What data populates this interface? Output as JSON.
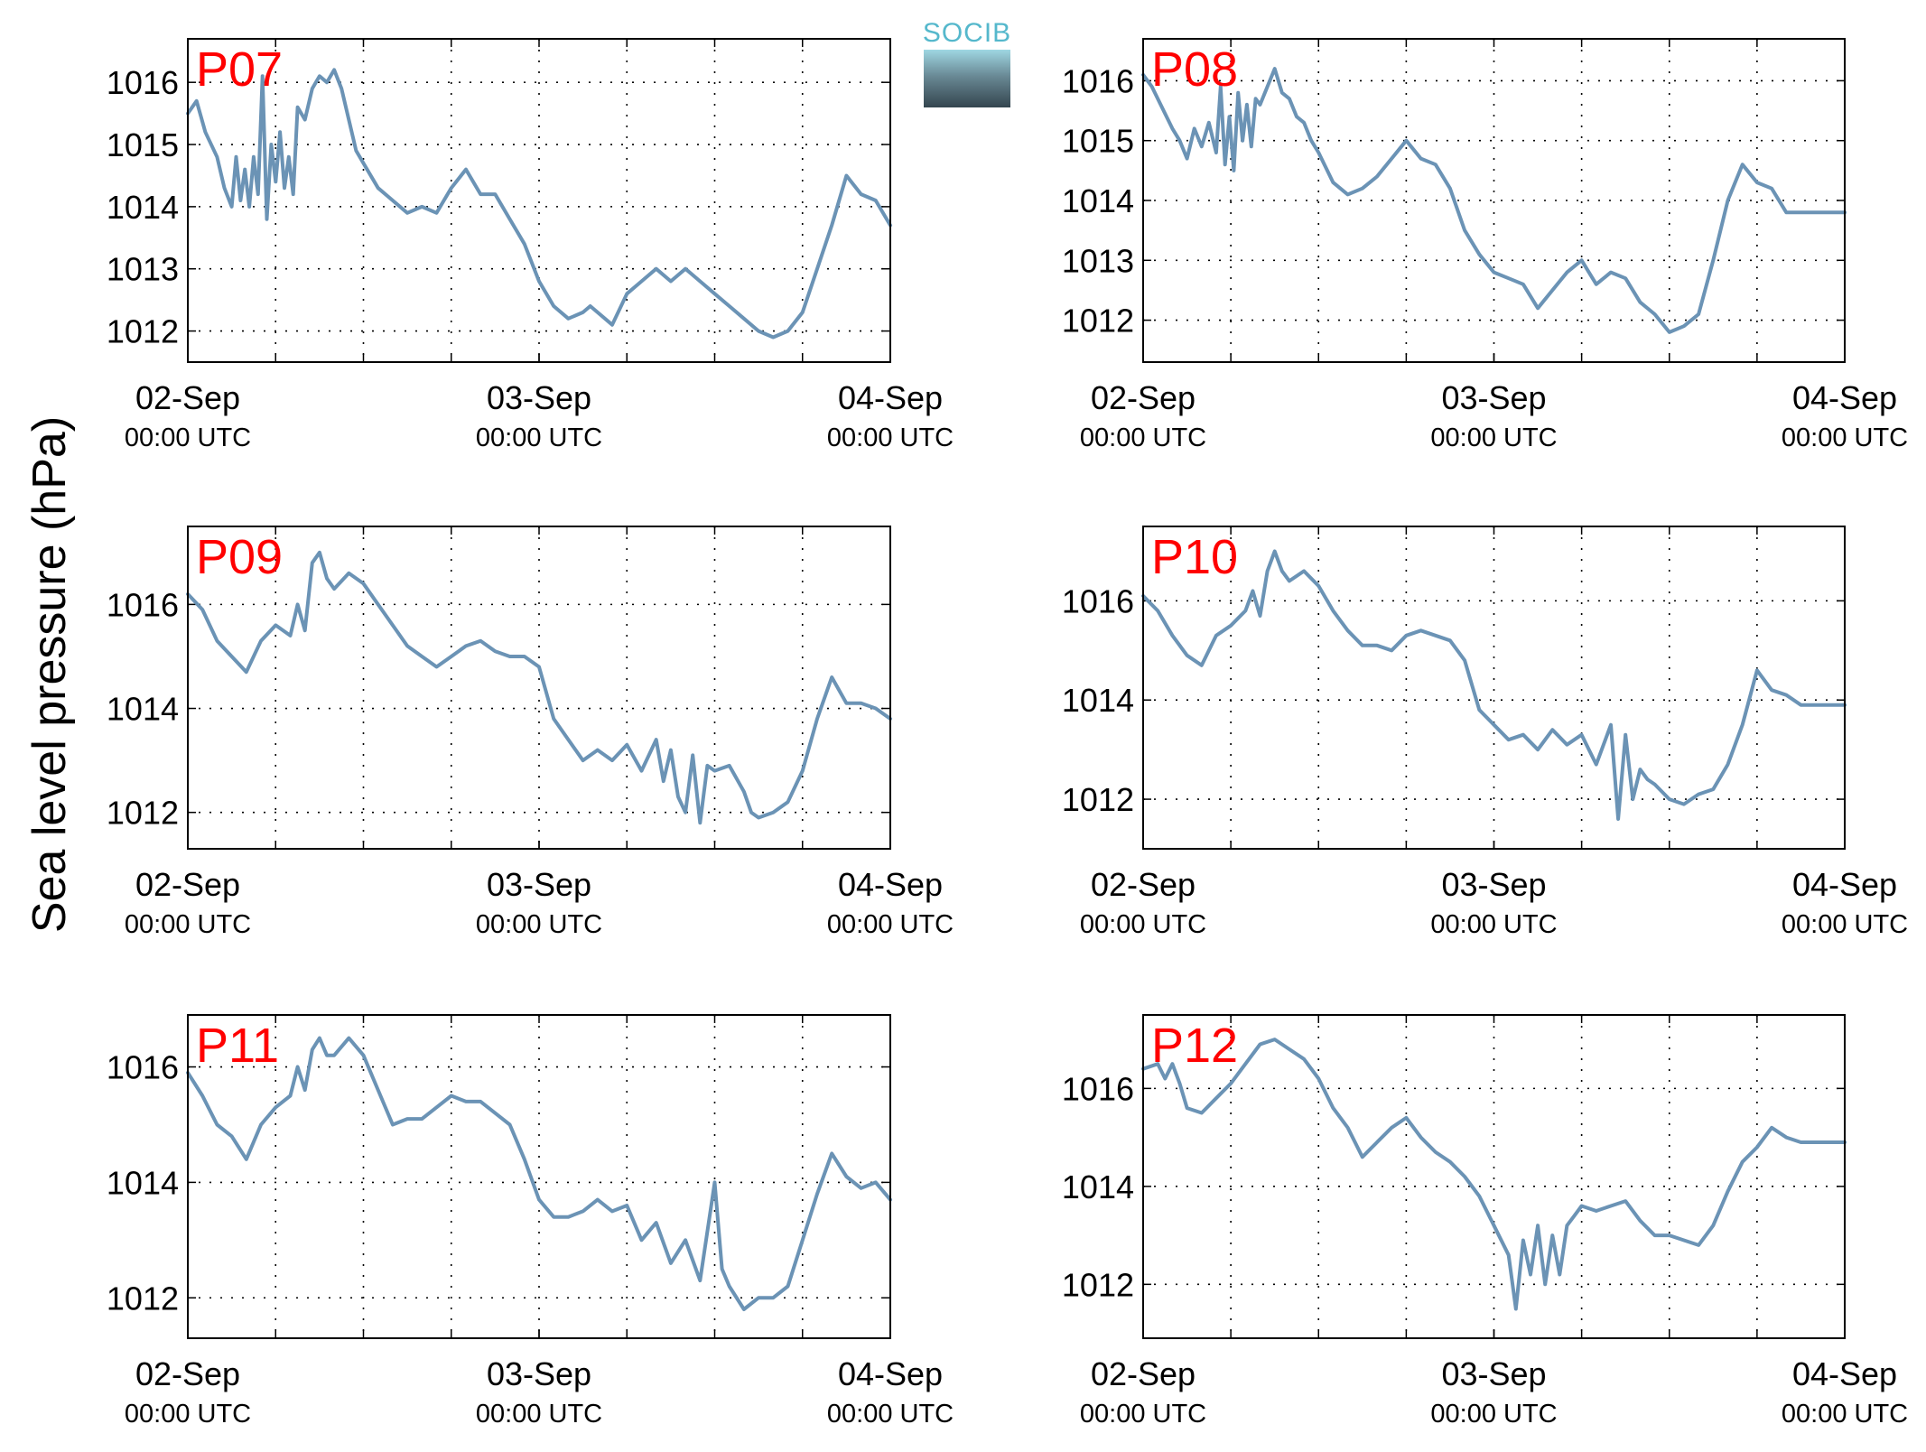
{
  "figure": {
    "ylabel": "Sea level pressure (hPa)"
  },
  "logo": {
    "text": "SOCIB",
    "colors": [
      "#55b8cc",
      "#34454f"
    ]
  },
  "style": {
    "line_color": "#6b93b5",
    "panel_label_color": "#ff0000"
  },
  "chart_data": [
    {
      "type": "line",
      "name": "P07",
      "xlim": [
        0,
        48
      ],
      "ylim": [
        1011.5,
        1016.7
      ],
      "yticks": [
        1012,
        1013,
        1014,
        1015,
        1016
      ],
      "xticks": [
        {
          "x": 0,
          "date": "02-Sep",
          "time": "00:00 UTC"
        },
        {
          "x": 24,
          "date": "03-Sep",
          "time": "00:00 UTC"
        },
        {
          "x": 48,
          "date": "04-Sep",
          "time": "00:00 UTC"
        }
      ],
      "xgrid": [
        6,
        12,
        18,
        24,
        30,
        36,
        42
      ],
      "x": [
        0,
        0.6,
        1.2,
        2,
        2.5,
        3,
        3.3,
        3.6,
        3.9,
        4.2,
        4.5,
        4.8,
        5.1,
        5.4,
        5.7,
        6,
        6.3,
        6.6,
        6.9,
        7.2,
        7.5,
        8,
        8.5,
        9,
        9.5,
        10,
        10.5,
        11,
        11.5,
        12,
        13,
        14,
        15,
        16,
        17,
        17.5,
        18,
        19,
        20,
        21,
        22,
        23,
        24,
        25,
        26,
        27,
        27.5,
        28,
        29,
        30,
        31,
        32,
        33,
        34,
        35,
        36,
        37,
        38,
        39,
        40,
        41,
        42,
        43,
        44,
        45,
        46,
        47,
        48
      ],
      "y": [
        1015.5,
        1015.7,
        1015.2,
        1014.8,
        1014.3,
        1014.0,
        1014.8,
        1014.1,
        1014.6,
        1014.0,
        1014.8,
        1014.2,
        1016.1,
        1013.8,
        1015.0,
        1014.4,
        1015.2,
        1014.3,
        1014.8,
        1014.2,
        1015.6,
        1015.4,
        1015.9,
        1016.1,
        1016.0,
        1016.2,
        1015.9,
        1015.4,
        1014.9,
        1014.7,
        1014.3,
        1014.1,
        1013.9,
        1014.0,
        1013.9,
        1014.1,
        1014.3,
        1014.6,
        1014.2,
        1014.2,
        1013.8,
        1013.4,
        1012.8,
        1012.4,
        1012.2,
        1012.3,
        1012.4,
        1012.3,
        1012.1,
        1012.6,
        1012.8,
        1013.0,
        1012.8,
        1013.0,
        1012.8,
        1012.6,
        1012.4,
        1012.2,
        1012.0,
        1011.9,
        1012.0,
        1012.3,
        1013.0,
        1013.7,
        1014.5,
        1014.2,
        1014.1,
        1013.7
      ]
    },
    {
      "type": "line",
      "name": "P08",
      "xlim": [
        0,
        48
      ],
      "ylim": [
        1011.3,
        1016.7
      ],
      "yticks": [
        1012,
        1013,
        1014,
        1015,
        1016
      ],
      "xticks": [
        {
          "x": 0,
          "date": "02-Sep",
          "time": "00:00 UTC"
        },
        {
          "x": 24,
          "date": "03-Sep",
          "time": "00:00 UTC"
        },
        {
          "x": 48,
          "date": "04-Sep",
          "time": "00:00 UTC"
        }
      ],
      "xgrid": [
        6,
        12,
        18,
        24,
        30,
        36,
        42
      ],
      "x": [
        0,
        0.6,
        1.2,
        2,
        2.5,
        3,
        3.5,
        4,
        4.5,
        5,
        5.3,
        5.6,
        5.9,
        6.2,
        6.5,
        6.8,
        7.1,
        7.4,
        7.7,
        8,
        8.5,
        9,
        9.5,
        10,
        10.5,
        11,
        11.5,
        12,
        13,
        14,
        15,
        16,
        17,
        18,
        19,
        20,
        21,
        22,
        23,
        24,
        25,
        26,
        27,
        28,
        29,
        30,
        31,
        32,
        33,
        34,
        35,
        36,
        37,
        38,
        39,
        40,
        41,
        42,
        43,
        44,
        45,
        46,
        47,
        48
      ],
      "y": [
        1016.1,
        1015.9,
        1015.6,
        1015.2,
        1015.0,
        1014.7,
        1015.2,
        1014.9,
        1015.3,
        1014.8,
        1015.9,
        1014.6,
        1015.4,
        1014.5,
        1015.8,
        1015.0,
        1015.6,
        1014.9,
        1015.7,
        1015.6,
        1015.9,
        1016.2,
        1015.8,
        1015.7,
        1015.4,
        1015.3,
        1015.0,
        1014.8,
        1014.3,
        1014.1,
        1014.2,
        1014.4,
        1014.7,
        1015.0,
        1014.7,
        1014.6,
        1014.2,
        1013.5,
        1013.1,
        1012.8,
        1012.7,
        1012.6,
        1012.2,
        1012.5,
        1012.8,
        1013.0,
        1012.6,
        1012.8,
        1012.7,
        1012.3,
        1012.1,
        1011.8,
        1011.9,
        1012.1,
        1013.0,
        1014.0,
        1014.6,
        1014.3,
        1014.2,
        1013.8,
        1013.8,
        1013.8,
        1013.8,
        1013.8
      ]
    },
    {
      "type": "line",
      "name": "P09",
      "xlim": [
        0,
        48
      ],
      "ylim": [
        1011.3,
        1017.5
      ],
      "yticks": [
        1012,
        1014,
        1016
      ],
      "xticks": [
        {
          "x": 0,
          "date": "02-Sep",
          "time": "00:00 UTC"
        },
        {
          "x": 24,
          "date": "03-Sep",
          "time": "00:00 UTC"
        },
        {
          "x": 48,
          "date": "04-Sep",
          "time": "00:00 UTC"
        }
      ],
      "xgrid": [
        6,
        12,
        18,
        24,
        30,
        36,
        42
      ],
      "x": [
        0,
        1,
        2,
        3,
        4,
        5,
        6,
        7,
        7.5,
        8,
        8.5,
        9,
        9.5,
        10,
        11,
        12,
        13,
        14,
        15,
        16,
        17,
        18,
        19,
        20,
        21,
        22,
        23,
        24,
        25,
        26,
        27,
        28,
        29,
        30,
        31,
        32,
        32.5,
        33,
        33.5,
        34,
        34.5,
        35,
        35.5,
        36,
        37,
        38,
        38.5,
        39,
        40,
        41,
        42,
        43,
        44,
        45,
        46,
        47,
        48
      ],
      "y": [
        1016.2,
        1015.9,
        1015.3,
        1015.0,
        1014.7,
        1015.3,
        1015.6,
        1015.4,
        1016.0,
        1015.5,
        1016.8,
        1017.0,
        1016.5,
        1016.3,
        1016.6,
        1016.4,
        1016.0,
        1015.6,
        1015.2,
        1015.0,
        1014.8,
        1015.0,
        1015.2,
        1015.3,
        1015.1,
        1015.0,
        1015.0,
        1014.8,
        1013.8,
        1013.4,
        1013.0,
        1013.2,
        1013.0,
        1013.3,
        1012.8,
        1013.4,
        1012.6,
        1013.2,
        1012.3,
        1012.0,
        1013.1,
        1011.8,
        1012.9,
        1012.8,
        1012.9,
        1012.4,
        1012.0,
        1011.9,
        1012.0,
        1012.2,
        1012.8,
        1013.8,
        1014.6,
        1014.1,
        1014.1,
        1014.0,
        1013.8
      ]
    },
    {
      "type": "line",
      "name": "P10",
      "xlim": [
        0,
        48
      ],
      "ylim": [
        1011.0,
        1017.5
      ],
      "yticks": [
        1012,
        1014,
        1016
      ],
      "xticks": [
        {
          "x": 0,
          "date": "02-Sep",
          "time": "00:00 UTC"
        },
        {
          "x": 24,
          "date": "03-Sep",
          "time": "00:00 UTC"
        },
        {
          "x": 48,
          "date": "04-Sep",
          "time": "00:00 UTC"
        }
      ],
      "xgrid": [
        6,
        12,
        18,
        24,
        30,
        36,
        42
      ],
      "x": [
        0,
        1,
        2,
        3,
        4,
        5,
        6,
        7,
        7.5,
        8,
        8.5,
        9,
        9.5,
        10,
        11,
        12,
        13,
        14,
        15,
        16,
        17,
        18,
        19,
        20,
        21,
        22,
        23,
        24,
        25,
        26,
        27,
        28,
        29,
        30,
        31,
        32,
        32.5,
        33,
        33.5,
        34,
        34.5,
        35,
        36,
        37,
        38,
        39,
        40,
        41,
        42,
        43,
        44,
        45,
        46,
        47,
        48
      ],
      "y": [
        1016.1,
        1015.8,
        1015.3,
        1014.9,
        1014.7,
        1015.3,
        1015.5,
        1015.8,
        1016.2,
        1015.7,
        1016.6,
        1017.0,
        1016.6,
        1016.4,
        1016.6,
        1016.3,
        1015.8,
        1015.4,
        1015.1,
        1015.1,
        1015.0,
        1015.3,
        1015.4,
        1015.3,
        1015.2,
        1014.8,
        1013.8,
        1013.5,
        1013.2,
        1013.3,
        1013.0,
        1013.4,
        1013.1,
        1013.3,
        1012.7,
        1013.5,
        1011.6,
        1013.3,
        1012.0,
        1012.6,
        1012.4,
        1012.3,
        1012.0,
        1011.9,
        1012.1,
        1012.2,
        1012.7,
        1013.5,
        1014.6,
        1014.2,
        1014.1,
        1013.9,
        1013.9,
        1013.9,
        1013.9
      ]
    },
    {
      "type": "line",
      "name": "P11",
      "xlim": [
        0,
        48
      ],
      "ylim": [
        1011.3,
        1016.9
      ],
      "yticks": [
        1012,
        1014,
        1016
      ],
      "xticks": [
        {
          "x": 0,
          "date": "02-Sep",
          "time": "00:00 UTC"
        },
        {
          "x": 24,
          "date": "03-Sep",
          "time": "00:00 UTC"
        },
        {
          "x": 48,
          "date": "04-Sep",
          "time": "00:00 UTC"
        }
      ],
      "xgrid": [
        6,
        12,
        18,
        24,
        30,
        36,
        42
      ],
      "x": [
        0,
        1,
        2,
        3,
        4,
        5,
        6,
        7,
        7.5,
        8,
        8.5,
        9,
        9.5,
        10,
        11,
        12,
        13,
        14,
        15,
        16,
        17,
        18,
        19,
        20,
        21,
        22,
        23,
        24,
        25,
        26,
        27,
        28,
        29,
        30,
        31,
        32,
        33,
        34,
        35,
        36,
        36.5,
        37,
        38,
        39,
        40,
        41,
        42,
        43,
        44,
        45,
        46,
        47,
        48
      ],
      "y": [
        1015.9,
        1015.5,
        1015.0,
        1014.8,
        1014.4,
        1015.0,
        1015.3,
        1015.5,
        1016.0,
        1015.6,
        1016.3,
        1016.5,
        1016.2,
        1016.2,
        1016.5,
        1016.2,
        1015.6,
        1015.0,
        1015.1,
        1015.1,
        1015.3,
        1015.5,
        1015.4,
        1015.4,
        1015.2,
        1015.0,
        1014.4,
        1013.7,
        1013.4,
        1013.4,
        1013.5,
        1013.7,
        1013.5,
        1013.6,
        1013.0,
        1013.3,
        1012.6,
        1013.0,
        1012.3,
        1014.0,
        1012.5,
        1012.2,
        1011.8,
        1012.0,
        1012.0,
        1012.2,
        1013.0,
        1013.8,
        1014.5,
        1014.1,
        1013.9,
        1014.0,
        1013.7
      ]
    },
    {
      "type": "line",
      "name": "P12",
      "xlim": [
        0,
        48
      ],
      "ylim": [
        1010.9,
        1017.5
      ],
      "yticks": [
        1012,
        1014,
        1016
      ],
      "xticks": [
        {
          "x": 0,
          "date": "02-Sep",
          "time": "00:00 UTC"
        },
        {
          "x": 24,
          "date": "03-Sep",
          "time": "00:00 UTC"
        },
        {
          "x": 48,
          "date": "04-Sep",
          "time": "00:00 UTC"
        }
      ],
      "xgrid": [
        6,
        12,
        18,
        24,
        30,
        36,
        42
      ],
      "x": [
        0,
        1,
        1.5,
        2,
        2.5,
        3,
        4,
        5,
        6,
        7,
        8,
        9,
        10,
        11,
        12,
        13,
        14,
        15,
        16,
        17,
        18,
        19,
        20,
        21,
        22,
        23,
        24,
        25,
        25.5,
        26,
        26.5,
        27,
        27.5,
        28,
        28.5,
        29,
        29.5,
        30,
        31,
        32,
        33,
        34,
        35,
        36,
        37,
        38,
        39,
        40,
        41,
        42,
        43,
        44,
        45,
        46,
        47,
        48
      ],
      "y": [
        1016.4,
        1016.5,
        1016.2,
        1016.5,
        1016.1,
        1015.6,
        1015.5,
        1015.8,
        1016.1,
        1016.5,
        1016.9,
        1017.0,
        1016.8,
        1016.6,
        1016.2,
        1015.6,
        1015.2,
        1014.6,
        1014.9,
        1015.2,
        1015.4,
        1015.0,
        1014.7,
        1014.5,
        1014.2,
        1013.8,
        1013.2,
        1012.6,
        1011.5,
        1012.9,
        1012.2,
        1013.2,
        1012.0,
        1013.0,
        1012.2,
        1013.2,
        1013.4,
        1013.6,
        1013.5,
        1013.6,
        1013.7,
        1013.3,
        1013.0,
        1013.0,
        1012.9,
        1012.8,
        1013.2,
        1013.9,
        1014.5,
        1014.8,
        1015.2,
        1015.0,
        1014.9,
        1014.9,
        1014.9,
        1014.9
      ]
    }
  ]
}
